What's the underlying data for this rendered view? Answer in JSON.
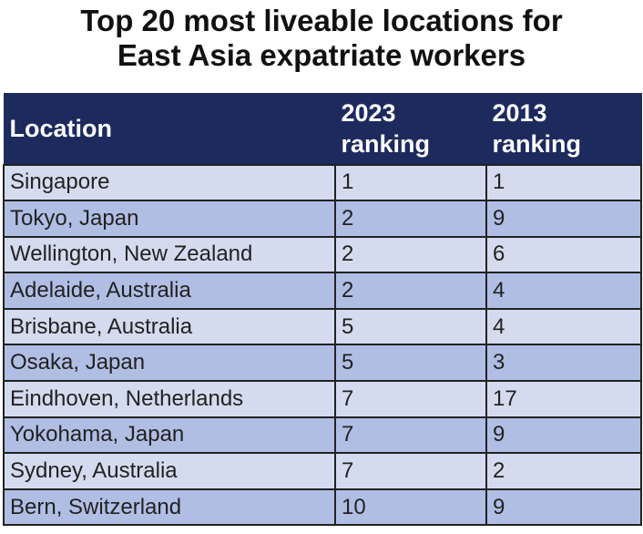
{
  "title_line1": "Top 20 most liveable locations for",
  "title_line2": "East Asia expatriate workers",
  "chart_data": {
    "type": "table",
    "title": "Top 20 most liveable locations for East Asia expatriate workers",
    "columns": [
      "Location",
      "2023 ranking",
      "2013 ranking"
    ],
    "header": {
      "location": "Location",
      "r2023_line1": "2023",
      "r2023_line2": "ranking",
      "r2013_line1": "2013",
      "r2013_line2": "ranking"
    },
    "rows": [
      {
        "location": "Singapore",
        "r2023": "1",
        "r2013": "1"
      },
      {
        "location": "Tokyo, Japan",
        "r2023": "2",
        "r2013": "9"
      },
      {
        "location": "Wellington, New Zealand",
        "r2023": "2",
        "r2013": "6"
      },
      {
        "location": "Adelaide, Australia",
        "r2023": "2",
        "r2013": "4"
      },
      {
        "location": "Brisbane, Australia",
        "r2023": "5",
        "r2013": "4"
      },
      {
        "location": "Osaka, Japan",
        "r2023": "5",
        "r2013": "3"
      },
      {
        "location": "Eindhoven, Netherlands",
        "r2023": "7",
        "r2013": "17"
      },
      {
        "location": "Yokohama, Japan",
        "r2023": "7",
        "r2013": "9"
      },
      {
        "location": "Sydney, Australia",
        "r2023": "7",
        "r2013": "2"
      },
      {
        "location": "Bern, Switzerland",
        "r2023": "10",
        "r2013": "9"
      }
    ]
  },
  "colors": {
    "header_bg": "#1c2a5e",
    "header_text": "#ffffff",
    "row_light": "#d5dbef",
    "row_dark": "#b1bee4",
    "border": "#222222"
  }
}
